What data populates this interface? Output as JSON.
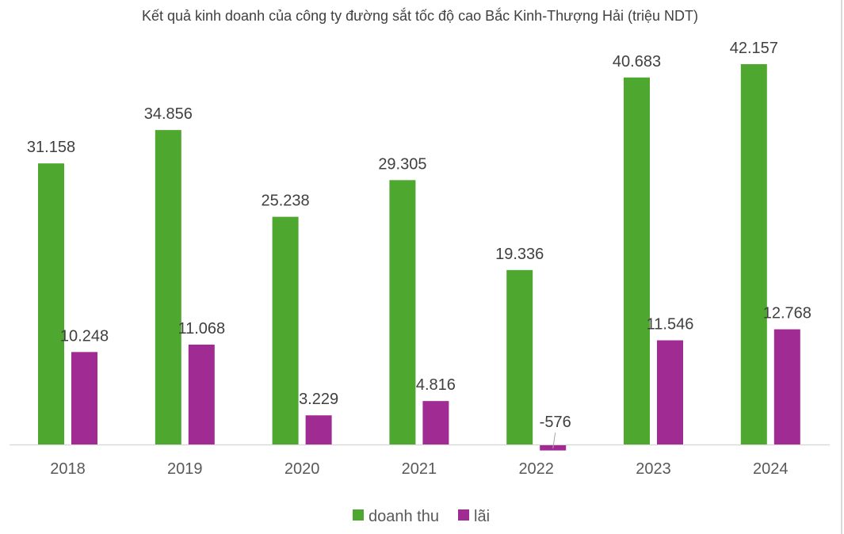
{
  "chart_data": {
    "type": "bar",
    "title": "Kết quả kinh doanh của công ty đường sắt tốc độ cao Bắc Kinh-Thượng Hải (triệu NDT)",
    "xlabel": "",
    "ylabel": "",
    "categories": [
      "2018",
      "2019",
      "2020",
      "2021",
      "2022",
      "2023",
      "2024"
    ],
    "series": [
      {
        "name": "doanh thu",
        "color": "#4ea72e",
        "values": [
          31158,
          34856,
          25238,
          29305,
          19336,
          40683,
          42157
        ],
        "labels": [
          "31.158",
          "34.856",
          "25.238",
          "29.305",
          "19.336",
          "40.683",
          "42.157"
        ]
      },
      {
        "name": "lãi",
        "color": "#a02b93",
        "values": [
          10248,
          11068,
          3229,
          4816,
          -576,
          11546,
          12768
        ],
        "labels": [
          "10.248",
          "11.068",
          "3.229",
          "4.816",
          "-576",
          "11.546",
          "12.768"
        ]
      }
    ],
    "ylim": [
      -1000,
      44000
    ],
    "grid": false,
    "legend": "bottom"
  }
}
